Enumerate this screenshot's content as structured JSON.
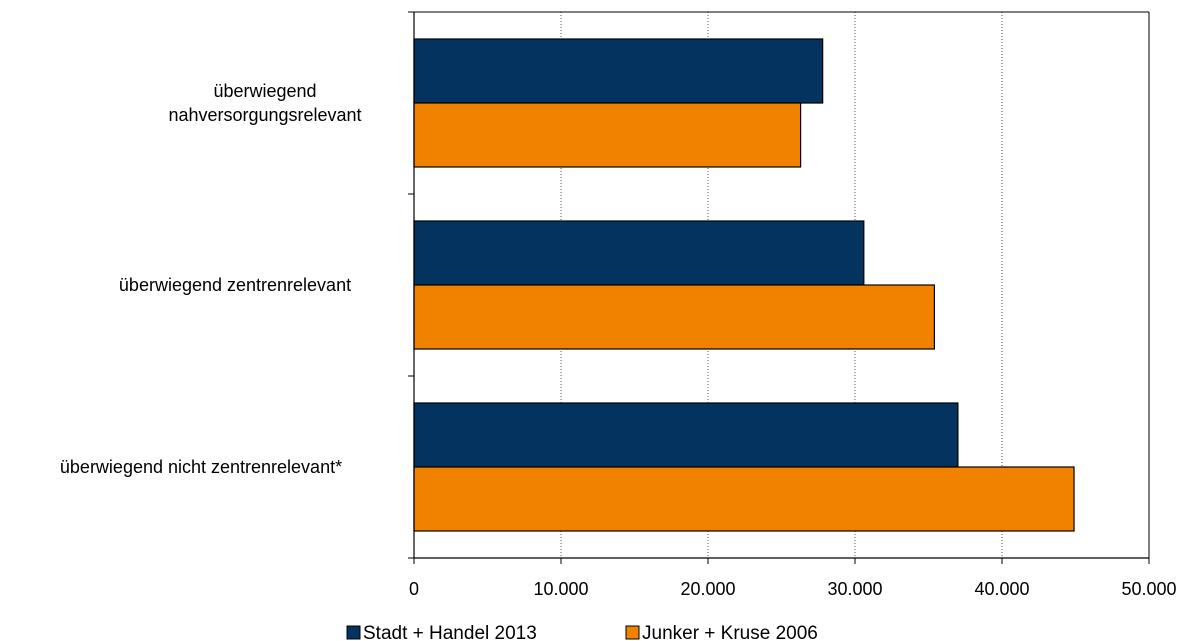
{
  "chart_data": {
    "type": "bar",
    "orientation": "horizontal",
    "categories": [
      "überwiegend nahversorgungsrelevant",
      "überwiegend zentrenrelevant",
      "überwiegend nicht zentrenrelevant*"
    ],
    "category_lines": [
      [
        "überwiegend",
        "nahversorgungsrelevant"
      ],
      [
        "überwiegend zentrenrelevant"
      ],
      [
        "überwiegend nicht zentrenrelevant*"
      ]
    ],
    "series": [
      {
        "name": "Stadt + Handel 2013",
        "color": "#04335f",
        "values": [
          27800,
          30600,
          37000
        ]
      },
      {
        "name": "Junker + Kruse 2006",
        "color": "#f08200",
        "values": [
          26300,
          35400,
          44900
        ]
      }
    ],
    "xlim": [
      0,
      50000
    ],
    "xticks": [
      0,
      10000,
      20000,
      30000,
      40000,
      50000
    ],
    "xtick_labels": [
      "0",
      "10.000",
      "20.000",
      "30.000",
      "40.000",
      "50.000"
    ],
    "grid": "vertical dotted",
    "legend_position": "bottom",
    "title": "",
    "xlabel": "",
    "ylabel": ""
  }
}
